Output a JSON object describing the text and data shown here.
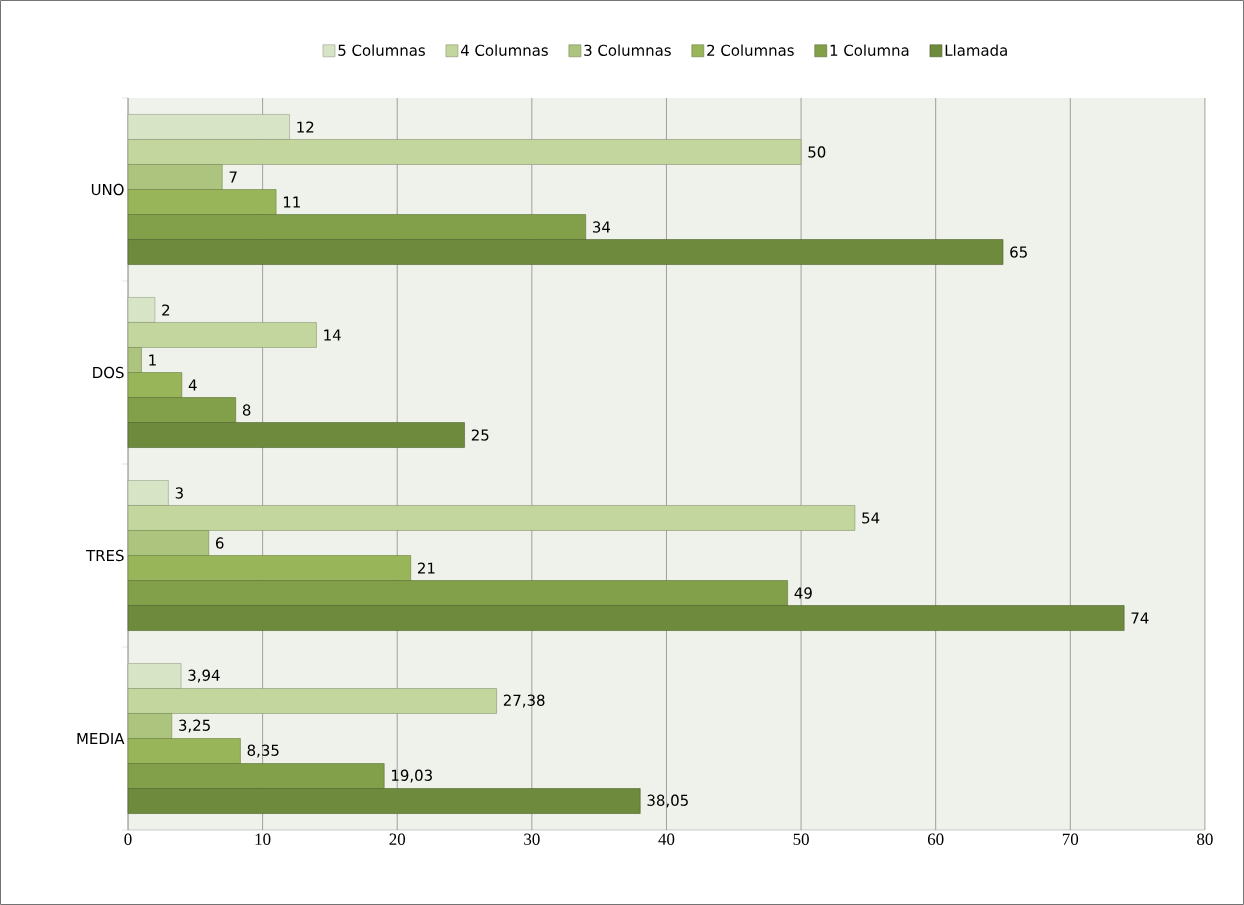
{
  "chart_data": {
    "type": "bar",
    "orientation": "horizontal",
    "categories": [
      "UNO",
      "DOS",
      "TRES",
      "MEDIA"
    ],
    "series": [
      {
        "name": "5 Columnas",
        "color": "#d8e4c6",
        "values": [
          12,
          2,
          3,
          3.94
        ],
        "value_labels": [
          "12",
          "2",
          "3",
          "3,94"
        ]
      },
      {
        "name": "4 Columnas",
        "color": "#c3d69e",
        "values": [
          50,
          14,
          54,
          27.38
        ],
        "value_labels": [
          "50",
          "14",
          "54",
          "27,38"
        ]
      },
      {
        "name": "3 Columnas",
        "color": "#acc47e",
        "values": [
          7,
          1,
          6,
          3.25
        ],
        "value_labels": [
          "7",
          "1",
          "6",
          "3,25"
        ]
      },
      {
        "name": "2 Columnas",
        "color": "#98b55a",
        "values": [
          11,
          4,
          21,
          8.35
        ],
        "value_labels": [
          "11",
          "4",
          "21",
          "8,35"
        ]
      },
      {
        "name": "1 Columna",
        "color": "#82a04a",
        "values": [
          34,
          8,
          49,
          19.03
        ],
        "value_labels": [
          "34",
          "8",
          "49",
          "19,03"
        ]
      },
      {
        "name": "Llamada",
        "color": "#6e8a3c",
        "values": [
          65,
          25,
          74,
          38.05
        ],
        "value_labels": [
          "65",
          "25",
          "74",
          "38,05"
        ]
      }
    ],
    "xlim": [
      0,
      80
    ],
    "xticks": [
      0,
      10,
      20,
      30,
      40,
      50,
      60,
      70,
      80
    ],
    "grid": "x",
    "legend": "top"
  }
}
